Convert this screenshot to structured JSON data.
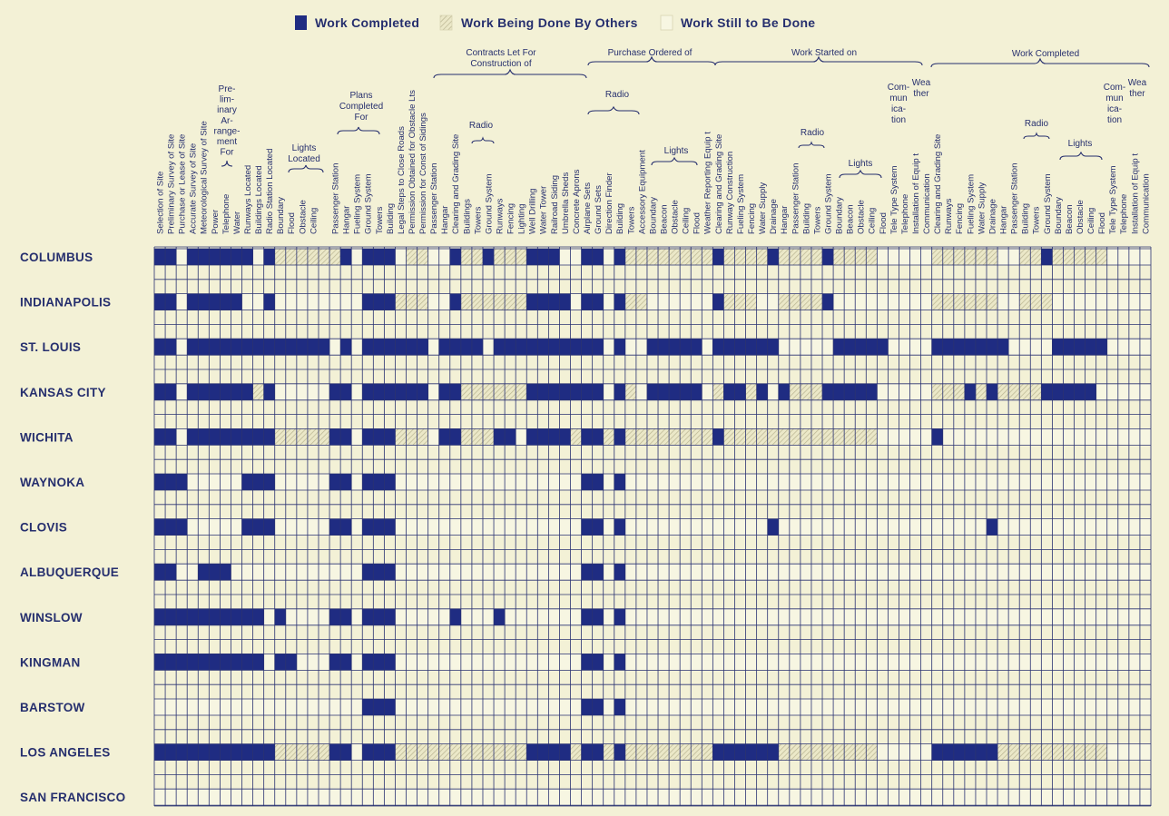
{
  "legend": [
    {
      "label": "Work Completed",
      "color": "#1f2c82"
    },
    {
      "label": "Work Being Done By Others",
      "color": "#ebe8c8",
      "pattern": "hatch"
    },
    {
      "label": "Work Still to Be Done",
      "color": "#f7f6e2"
    }
  ],
  "group_headers": [
    {
      "lines": [
        "Pre-",
        "lim-",
        "inary",
        "Ar-",
        "range-",
        "ment",
        "For"
      ]
    },
    {
      "lines": [
        "Lights",
        "Located"
      ]
    },
    {
      "lines": [
        "Plans",
        "Completed",
        "For"
      ]
    },
    {
      "lines": [
        "Contracts Let For",
        "Construction of"
      ]
    },
    {
      "lines": [
        "Radio"
      ]
    },
    {
      "lines": [
        "Purchase Ordered of"
      ]
    },
    {
      "lines": [
        "Radio"
      ]
    },
    {
      "lines": [
        "Lights"
      ]
    },
    {
      "lines": [
        "Work Started on"
      ]
    },
    {
      "lines": [
        "Radio"
      ]
    },
    {
      "lines": [
        "Lights"
      ]
    },
    {
      "lines": [
        "Com-",
        "mun",
        "ica-",
        "tion"
      ]
    },
    {
      "lines": [
        "Wea",
        "ther"
      ]
    },
    {
      "lines": [
        "Work Completed"
      ]
    },
    {
      "lines": [
        "Radio"
      ]
    },
    {
      "lines": [
        "Lights"
      ]
    },
    {
      "lines": [
        "Com-",
        "mun",
        "ica-",
        "tion"
      ]
    },
    {
      "lines": [
        "Wea",
        "ther"
      ]
    }
  ],
  "columns": [
    "Selection of Site",
    "Preliminary Survey of Site",
    "Purchase or Lease of Site",
    "Accurate Survey of Site",
    "Meteorological Survey of Site",
    "Power",
    "Telephone",
    "Water",
    "Runways Located",
    "Buildings Located",
    "Radio Station Located",
    "Boundary",
    "Flood",
    "Obstacle",
    "Ceiling",
    null,
    "Passenger Station",
    "Hangar",
    "Fueling System",
    "Ground System",
    "Towers",
    "Building",
    "Legal Steps to Close Roads",
    "Permission Obtained for Obstacle Lts",
    "Permission for Const of Sidings",
    "Passenger Station",
    "Hangar",
    "Clearing and Grading Site",
    "Buildings",
    "Towers",
    "Ground System",
    "Runways",
    "Fencing",
    "Lighting",
    "Well Drilling",
    "Water Tower",
    "Railroad Siding",
    "Umbrella Sheds",
    "Concrete Aprons",
    "Airplane Sets",
    "Ground Sets",
    "Direction Finder",
    "Building",
    "Towers",
    "Accessory Equipment",
    "Boundary",
    "Beacon",
    "Obstacle",
    "Ceiling",
    "Flood",
    "Weather Reporting Equip t",
    "Clearing and Grading Site",
    "Runway Construction",
    "Fueling System",
    "Fencing",
    "Water Supply",
    "Drainage",
    "Hangar",
    "Passenger Station",
    "Building",
    "Towers",
    "Ground System",
    "Boundary",
    "Beacon",
    "Obstacle",
    "Ceiling",
    "Flood",
    "Tele Type System",
    "Telephone",
    "Installation of Equip t",
    "Communication",
    "Clearing and Grading Site",
    "Runways",
    "Fencing",
    "Fueling System",
    "Water Supply",
    "Drainage",
    "Hangar",
    "Passenger Station",
    "Building",
    "Towers",
    "Ground System",
    "Boundary",
    "Beacon",
    "Obstacle",
    "Ceiling",
    "Flood",
    "Tele Type System",
    "Telephone",
    "Installation of Equip t",
    "Communication"
  ],
  "rows": [
    {
      "city": "COLUMBUS",
      "status": [
        0,
        0,
        2,
        0,
        0,
        0,
        0,
        0,
        0,
        2,
        0,
        1,
        1,
        1,
        1,
        1,
        1,
        0,
        2,
        0,
        0,
        0,
        2,
        1,
        1,
        2,
        2,
        0,
        1,
        1,
        0,
        1,
        1,
        1,
        0,
        0,
        0,
        2,
        2,
        0,
        0,
        2,
        0,
        1,
        1,
        1,
        1,
        1,
        1,
        1,
        1,
        0,
        1,
        1,
        1,
        1,
        0,
        1,
        1,
        1,
        1,
        0,
        1,
        1,
        1,
        1,
        2,
        2,
        2,
        2,
        2,
        1,
        1,
        1,
        1,
        1,
        1,
        2,
        2,
        1,
        1,
        0,
        1,
        1,
        1,
        1,
        1,
        2,
        2,
        2,
        2
      ]
    },
    {
      "city": "INDIANAPOLIS",
      "status": [
        0,
        0,
        2,
        0,
        0,
        0,
        0,
        0,
        2,
        2,
        0,
        2,
        2,
        2,
        2,
        2,
        2,
        2,
        2,
        0,
        0,
        0,
        1,
        1,
        1,
        2,
        2,
        0,
        1,
        1,
        1,
        1,
        1,
        1,
        0,
        0,
        0,
        0,
        2,
        0,
        0,
        2,
        0,
        1,
        1,
        2,
        2,
        2,
        2,
        2,
        2,
        0,
        1,
        1,
        1,
        2,
        2,
        1,
        1,
        1,
        1,
        0,
        2,
        2,
        2,
        2,
        2,
        2,
        2,
        2,
        2,
        1,
        1,
        1,
        1,
        1,
        1,
        2,
        2,
        1,
        1,
        1,
        2,
        2,
        2,
        2,
        2,
        2,
        2,
        2,
        2
      ]
    },
    {
      "city": "ST. LOUIS",
      "status": [
        0,
        0,
        2,
        0,
        0,
        0,
        0,
        0,
        0,
        0,
        0,
        0,
        0,
        0,
        0,
        0,
        2,
        0,
        2,
        0,
        0,
        0,
        0,
        0,
        0,
        2,
        0,
        0,
        0,
        0,
        2,
        0,
        0,
        0,
        0,
        0,
        0,
        0,
        0,
        0,
        0,
        2,
        0,
        2,
        2,
        0,
        0,
        0,
        0,
        0,
        2,
        0,
        0,
        0,
        0,
        0,
        0,
        2,
        2,
        2,
        2,
        2,
        0,
        0,
        0,
        0,
        0,
        2,
        2,
        2,
        2,
        0,
        0,
        0,
        0,
        0,
        0,
        0,
        2,
        2,
        2,
        2,
        0,
        0,
        0,
        0,
        0,
        2,
        2,
        2,
        2
      ]
    },
    {
      "city": "KANSAS CITY",
      "status": [
        0,
        0,
        2,
        0,
        0,
        0,
        0,
        0,
        0,
        1,
        0,
        2,
        2,
        2,
        2,
        2,
        0,
        0,
        2,
        0,
        0,
        0,
        0,
        0,
        0,
        2,
        0,
        0,
        1,
        1,
        1,
        1,
        1,
        1,
        0,
        0,
        0,
        0,
        0,
        0,
        0,
        2,
        0,
        1,
        2,
        0,
        0,
        0,
        0,
        0,
        2,
        1,
        0,
        0,
        1,
        0,
        2,
        0,
        1,
        1,
        1,
        0,
        0,
        0,
        0,
        0,
        2,
        2,
        2,
        2,
        2,
        1,
        1,
        1,
        0,
        1,
        0,
        1,
        1,
        1,
        1,
        0,
        0,
        0,
        0,
        0,
        2,
        2,
        2,
        2,
        2
      ]
    },
    {
      "city": "WICHITA",
      "status": [
        0,
        0,
        2,
        0,
        0,
        0,
        0,
        0,
        0,
        0,
        0,
        1,
        1,
        1,
        1,
        1,
        0,
        0,
        2,
        0,
        0,
        0,
        1,
        1,
        1,
        2,
        0,
        0,
        1,
        1,
        1,
        0,
        0,
        2,
        0,
        0,
        0,
        0,
        1,
        0,
        0,
        1,
        0,
        1,
        1,
        1,
        1,
        1,
        1,
        1,
        1,
        0,
        1,
        1,
        1,
        1,
        1,
        1,
        1,
        1,
        1,
        1,
        1,
        1,
        1,
        1,
        2,
        2,
        2,
        2,
        2,
        0,
        2,
        2,
        2,
        2,
        2,
        2,
        2,
        2,
        2,
        2,
        2,
        2,
        2,
        2,
        2,
        2,
        2,
        2,
        2
      ]
    },
    {
      "city": "WAYNOKA",
      "status": [
        0,
        0,
        0,
        2,
        2,
        2,
        2,
        2,
        0,
        0,
        0,
        2,
        2,
        2,
        2,
        2,
        0,
        0,
        2,
        0,
        0,
        0,
        2,
        2,
        2,
        2,
        2,
        2,
        2,
        2,
        2,
        2,
        2,
        2,
        2,
        2,
        2,
        2,
        2,
        0,
        0,
        2,
        0,
        2,
        2,
        2,
        2,
        2,
        2,
        2,
        2,
        2,
        2,
        2,
        2,
        2,
        2,
        2,
        2,
        2,
        2,
        2,
        2,
        2,
        2,
        2,
        2,
        2,
        2,
        2,
        2,
        2,
        2,
        2,
        2,
        2,
        2,
        2,
        2,
        2,
        2,
        2,
        2,
        2,
        2,
        2,
        2,
        2,
        2,
        2,
        2
      ]
    },
    {
      "city": "CLOVIS",
      "status": [
        0,
        0,
        0,
        2,
        2,
        2,
        2,
        2,
        0,
        0,
        0,
        2,
        2,
        2,
        2,
        2,
        0,
        0,
        2,
        0,
        0,
        0,
        2,
        2,
        2,
        2,
        2,
        2,
        2,
        2,
        2,
        2,
        2,
        2,
        2,
        2,
        2,
        2,
        2,
        0,
        0,
        2,
        0,
        2,
        2,
        2,
        2,
        2,
        2,
        2,
        2,
        2,
        2,
        2,
        2,
        2,
        0,
        2,
        2,
        2,
        2,
        2,
        2,
        2,
        2,
        2,
        2,
        2,
        2,
        2,
        2,
        2,
        2,
        2,
        2,
        2,
        0,
        2,
        2,
        2,
        2,
        2,
        2,
        2,
        2,
        2,
        2,
        2,
        2,
        2,
        2
      ]
    },
    {
      "city": "ALBUQUERQUE",
      "status": [
        0,
        0,
        2,
        2,
        0,
        0,
        0,
        2,
        2,
        2,
        2,
        2,
        2,
        2,
        2,
        2,
        2,
        2,
        2,
        0,
        0,
        0,
        2,
        2,
        2,
        2,
        2,
        2,
        2,
        2,
        2,
        2,
        2,
        2,
        2,
        2,
        2,
        2,
        2,
        0,
        0,
        2,
        0,
        2,
        2,
        2,
        2,
        2,
        2,
        2,
        2,
        2,
        2,
        2,
        2,
        2,
        2,
        2,
        2,
        2,
        2,
        2,
        2,
        2,
        2,
        2,
        2,
        2,
        2,
        2,
        2,
        2,
        2,
        2,
        2,
        2,
        2,
        2,
        2,
        2,
        2,
        2,
        2,
        2,
        2,
        2,
        2,
        2,
        2,
        2,
        2
      ]
    },
    {
      "city": "WINSLOW",
      "status": [
        0,
        0,
        0,
        0,
        0,
        0,
        0,
        0,
        0,
        0,
        2,
        0,
        2,
        2,
        2,
        2,
        0,
        0,
        2,
        0,
        0,
        0,
        2,
        2,
        2,
        2,
        2,
        0,
        2,
        2,
        2,
        0,
        2,
        2,
        2,
        2,
        2,
        2,
        2,
        0,
        0,
        2,
        0,
        2,
        2,
        2,
        2,
        2,
        2,
        2,
        2,
        2,
        2,
        2,
        2,
        2,
        2,
        2,
        2,
        2,
        2,
        2,
        2,
        2,
        2,
        2,
        2,
        2,
        2,
        2,
        2,
        2,
        2,
        2,
        2,
        2,
        2,
        2,
        2,
        2,
        2,
        2,
        2,
        2,
        2,
        2,
        2,
        2,
        2,
        2,
        2
      ]
    },
    {
      "city": "KINGMAN",
      "status": [
        0,
        0,
        0,
        0,
        0,
        0,
        0,
        0,
        0,
        0,
        2,
        0,
        0,
        2,
        2,
        2,
        0,
        0,
        2,
        0,
        0,
        0,
        2,
        2,
        2,
        2,
        2,
        2,
        2,
        2,
        2,
        2,
        2,
        2,
        2,
        2,
        2,
        2,
        2,
        0,
        0,
        2,
        0,
        2,
        2,
        2,
        2,
        2,
        2,
        2,
        2,
        2,
        2,
        2,
        2,
        2,
        2,
        2,
        2,
        2,
        2,
        2,
        2,
        2,
        2,
        2,
        2,
        2,
        2,
        2,
        2,
        2,
        2,
        2,
        2,
        2,
        2,
        2,
        2,
        2,
        2,
        2,
        2,
        2,
        2,
        2,
        2,
        2,
        2,
        2,
        2
      ]
    },
    {
      "city": "BARSTOW",
      "status": [
        2,
        2,
        2,
        2,
        2,
        2,
        2,
        2,
        2,
        2,
        2,
        2,
        2,
        2,
        2,
        2,
        2,
        2,
        2,
        0,
        0,
        0,
        2,
        2,
        2,
        2,
        2,
        2,
        2,
        2,
        2,
        2,
        2,
        2,
        2,
        2,
        2,
        2,
        2,
        0,
        0,
        2,
        0,
        2,
        2,
        2,
        2,
        2,
        2,
        2,
        2,
        2,
        2,
        2,
        2,
        2,
        2,
        2,
        2,
        2,
        2,
        2,
        2,
        2,
        2,
        2,
        2,
        2,
        2,
        2,
        2,
        2,
        2,
        2,
        2,
        2,
        2,
        2,
        2,
        2,
        2,
        2,
        2,
        2,
        2,
        2,
        2,
        2,
        2,
        2,
        2
      ]
    },
    {
      "city": "LOS ANGELES",
      "status": [
        0,
        0,
        0,
        0,
        0,
        0,
        0,
        0,
        0,
        0,
        0,
        1,
        1,
        1,
        1,
        1,
        0,
        0,
        2,
        0,
        0,
        0,
        1,
        1,
        1,
        1,
        1,
        1,
        1,
        1,
        1,
        1,
        1,
        1,
        0,
        0,
        0,
        0,
        1,
        0,
        0,
        1,
        0,
        1,
        1,
        1,
        1,
        1,
        1,
        1,
        1,
        0,
        0,
        0,
        0,
        0,
        0,
        1,
        1,
        1,
        1,
        1,
        1,
        1,
        1,
        1,
        2,
        2,
        2,
        2,
        2,
        0,
        0,
        0,
        0,
        0,
        0,
        1,
        1,
        1,
        1,
        1,
        1,
        1,
        1,
        1,
        1,
        2,
        2,
        2,
        2
      ]
    },
    {
      "city": "SAN FRANCISCO",
      "status": [
        2,
        2,
        2,
        2,
        2,
        2,
        2,
        2,
        2,
        2,
        2,
        2,
        2,
        2,
        2,
        2,
        2,
        2,
        2,
        2,
        2,
        2,
        2,
        2,
        2,
        2,
        2,
        2,
        2,
        2,
        2,
        2,
        2,
        2,
        2,
        2,
        2,
        2,
        2,
        2,
        2,
        2,
        2,
        2,
        2,
        2,
        2,
        2,
        2,
        2,
        2,
        2,
        2,
        2,
        2,
        2,
        2,
        2,
        2,
        2,
        2,
        2,
        2,
        2,
        2,
        2,
        2,
        2,
        2,
        2,
        2,
        2,
        2,
        2,
        2,
        2,
        2,
        2,
        2,
        2,
        2,
        2,
        2,
        2,
        2,
        2,
        2,
        2,
        2,
        2,
        2
      ]
    }
  ]
}
